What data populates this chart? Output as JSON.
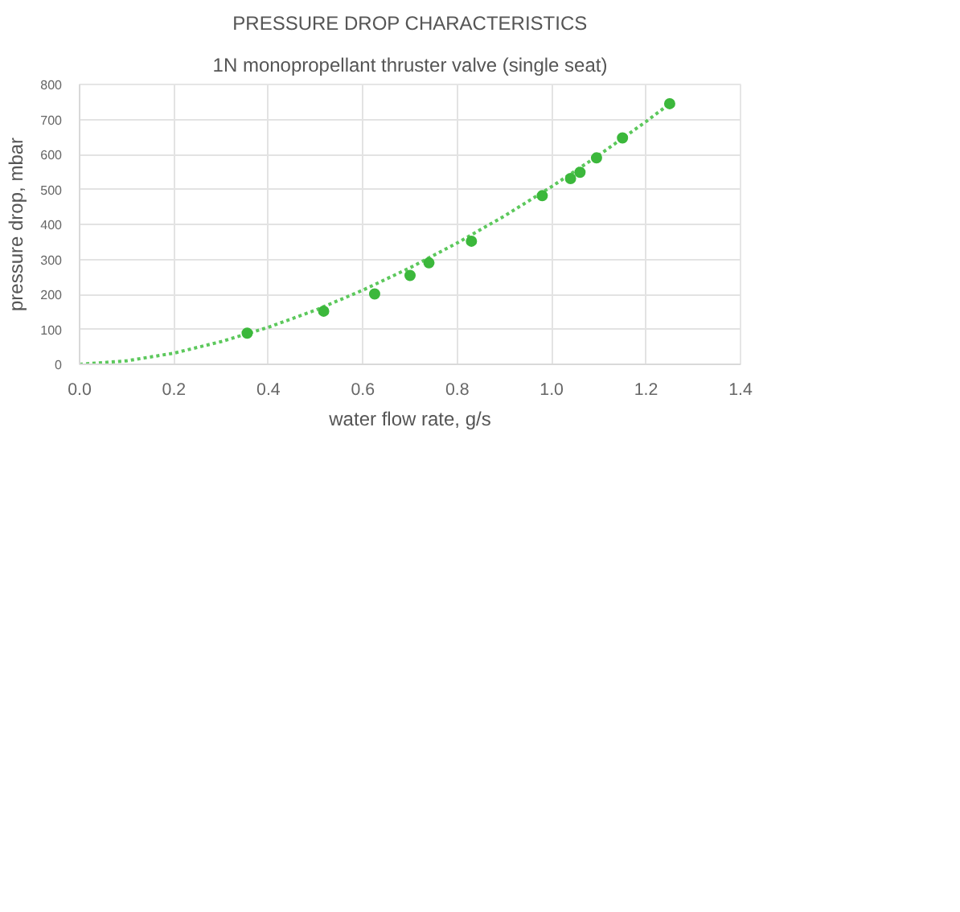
{
  "chart_data": {
    "type": "scatter",
    "title": "PRESSURE DROP CHARACTERISTICS",
    "subtitle": "1N monopropellant thruster valve (single seat)",
    "xlabel": "water flow rate, g/s",
    "ylabel": "pressure drop, mbar",
    "xlim": [
      0,
      1.4
    ],
    "xticks": [
      {
        "value": 0,
        "label": "0.0"
      },
      0.2,
      0.4,
      0.6,
      0.8,
      {
        "value": 1,
        "label": "1.0"
      },
      1.2,
      1.4
    ],
    "ylim": [
      0,
      800
    ],
    "yticks": [
      0,
      100,
      200,
      300,
      400,
      500,
      600,
      700,
      800
    ],
    "grid": true,
    "series": [
      {
        "marker": "circle",
        "color": "#3cb83c",
        "x": [
          0.355,
          0.517,
          0.625,
          0.7,
          0.74,
          0.83,
          0.98,
          1.04,
          1.06,
          1.095,
          1.15,
          1.25
        ],
        "values": [
          89,
          152,
          201,
          254,
          290,
          352,
          482,
          531,
          549,
          590,
          647,
          745
        ]
      },
      {
        "type": "line",
        "line_style": "dotted",
        "color": "#5cc85c",
        "x": [
          0,
          0.1,
          0.2,
          0.3,
          0.4,
          0.5,
          0.6,
          0.7,
          0.8,
          0.9,
          1.0,
          1.1,
          1.2,
          1.25
        ],
        "values": [
          0,
          10,
          32,
          65,
          106,
          155,
          212,
          276,
          347,
          424,
          508,
          598,
          694,
          745
        ]
      }
    ]
  }
}
